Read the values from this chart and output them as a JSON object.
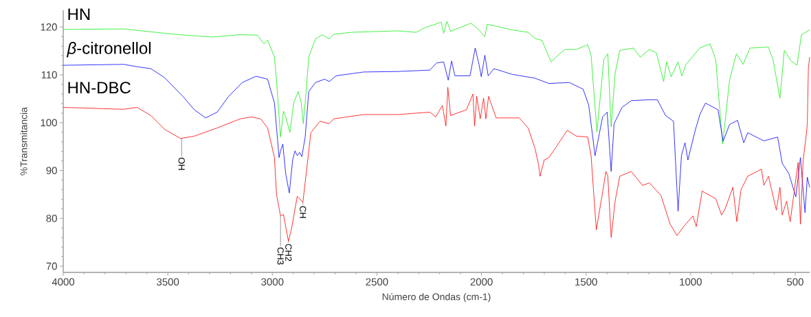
{
  "chart_data": {
    "type": "line",
    "xlabel": "Número de Ondas (cm-1)",
    "ylabel": "%Transmitancia",
    "xlim": [
      4000,
      431
    ],
    "ylim": [
      68.7,
      123.5
    ],
    "xticks": [
      4000,
      3500,
      3000,
      2500,
      2000,
      1500,
      1000,
      500
    ],
    "yticks": [
      70,
      80,
      90,
      100,
      110,
      120
    ],
    "marker": "none",
    "line_style": "solid",
    "series": [
      {
        "name": "HN",
        "color": "#11ee11",
        "x": [
          4000,
          3712,
          3450,
          3286,
          3154,
          3072,
          3040,
          3023,
          2990,
          2980,
          2961,
          2947,
          2936,
          2916,
          2898,
          2876,
          2862,
          2852,
          2837,
          2826,
          2794,
          2761,
          2728,
          2706,
          2619,
          2400,
          2312,
          2269,
          2192,
          2181,
          2165,
          2148,
          2050,
          2017,
          1984,
          1973,
          1853,
          1777,
          1744,
          1711,
          1667,
          1634,
          1602,
          1547,
          1492,
          1476,
          1448,
          1415,
          1396,
          1380,
          1361,
          1339,
          1274,
          1241,
          1197,
          1164,
          1129,
          1115,
          1093,
          1060,
          1042,
          1022,
          956,
          907,
          880,
          847,
          814,
          781,
          749,
          716,
          628,
          606,
          573,
          552,
          519,
          491,
          470,
          431
        ],
        "values": [
          119.5,
          119.6,
          118.4,
          117.9,
          118.4,
          118.3,
          116.5,
          117.3,
          113.7,
          108.8,
          97.0,
          102.4,
          101.2,
          98.0,
          104.1,
          106.5,
          104.1,
          99.8,
          107.4,
          113.7,
          117.5,
          118.4,
          117.5,
          118.5,
          118.9,
          119.2,
          118.9,
          119.9,
          121.0,
          118.7,
          121.2,
          119.1,
          120.8,
          119.6,
          118.0,
          120.6,
          119.4,
          118.9,
          117.6,
          117.2,
          112.7,
          114.1,
          115.3,
          115.3,
          116.3,
          114.1,
          98.1,
          113.2,
          114.4,
          99.1,
          110.3,
          115.1,
          115.6,
          113.7,
          115.3,
          114.6,
          108.6,
          112.7,
          109.6,
          112.7,
          109.8,
          112.2,
          115.6,
          116.5,
          113.2,
          95.5,
          108.9,
          114.4,
          112.2,
          115.6,
          115.8,
          113.2,
          105.1,
          115.1,
          112.9,
          112.0,
          118.4,
          119.4
        ]
      },
      {
        "name": "*β*-citronellol",
        "color": "#0000ff",
        "x": [
          4000,
          3712,
          3647,
          3581,
          3515,
          3428,
          3373,
          3319,
          3264,
          3209,
          3144,
          3078,
          3023,
          2990,
          2980,
          2968,
          2961,
          2950,
          2936,
          2919,
          2903,
          2892,
          2881,
          2870,
          2859,
          2843,
          2826,
          2794,
          2750,
          2728,
          2695,
          2564,
          2400,
          2247,
          2214,
          2181,
          2159,
          2143,
          2127,
          2055,
          2030,
          2012,
          2001,
          1984,
          1968,
          1941,
          1853,
          1744,
          1678,
          1580,
          1514,
          1487,
          1457,
          1421,
          1399,
          1380,
          1366,
          1328,
          1284,
          1197,
          1159,
          1120,
          1082,
          1060,
          1044,
          1027,
          1013,
          978,
          956,
          929,
          869,
          845,
          814,
          776,
          746,
          727,
          650,
          584,
          562,
          530,
          497,
          475,
          453,
          442,
          431
        ],
        "values": [
          112.0,
          112.2,
          111.7,
          111.3,
          109.4,
          105.5,
          102.7,
          101.0,
          102.2,
          105.5,
          108.4,
          109.7,
          109.1,
          104.1,
          98.9,
          92.7,
          94.1,
          95.5,
          89.3,
          85.3,
          92.2,
          94.1,
          93.1,
          93.8,
          92.9,
          97.0,
          106.5,
          108.4,
          109.1,
          108.6,
          109.8,
          110.6,
          110.7,
          111.0,
          112.5,
          112.7,
          108.9,
          112.9,
          109.8,
          109.8,
          115.6,
          112.2,
          109.6,
          114.1,
          109.8,
          111.3,
          110.1,
          109.3,
          108.2,
          108.4,
          107.0,
          103.6,
          93.1,
          101.2,
          102.2,
          89.8,
          99.8,
          103.2,
          104.6,
          104.8,
          104.8,
          101.5,
          100.3,
          81.5,
          93.1,
          95.8,
          92.2,
          98.4,
          101.7,
          104.1,
          102.7,
          96.1,
          99.6,
          100.5,
          95.8,
          97.9,
          96.2,
          97.0,
          91.5,
          89.3,
          84.5,
          92.7,
          81.2,
          88.6,
          86.5
        ]
      },
      {
        "name": "HN-DBC",
        "color": "#ff0000",
        "x": [
          4000,
          3712,
          3647,
          3581,
          3515,
          3439,
          3373,
          3264,
          3154,
          3100,
          3056,
          3023,
          2990,
          2980,
          2961,
          2947,
          2923,
          2908,
          2881,
          2854,
          2837,
          2816,
          2772,
          2728,
          2706,
          2564,
          2400,
          2247,
          2219,
          2187,
          2170,
          2161,
          2148,
          2072,
          2041,
          2033,
          2023,
          2006,
          1990,
          1979,
          1966,
          1930,
          1820,
          1777,
          1744,
          1727,
          1720,
          1700,
          1678,
          1645,
          1590,
          1547,
          1492,
          1476,
          1451,
          1426,
          1405,
          1396,
          1380,
          1361,
          1339,
          1284,
          1230,
          1197,
          1142,
          1098,
          1065,
          1033,
          989,
          973,
          945,
          880,
          852,
          836,
          798,
          779,
          759,
          727,
          661,
          650,
          628,
          590,
          573,
          562,
          541,
          524,
          486,
          475,
          462,
          448,
          442,
          437,
          431
        ],
        "values": [
          103.2,
          102.8,
          103.2,
          101.5,
          98.6,
          96.7,
          97.2,
          98.9,
          100.8,
          101.2,
          100.8,
          98.9,
          92.7,
          85.0,
          80.5,
          80.8,
          75.2,
          77.9,
          84.6,
          83.4,
          89.8,
          97.9,
          100.3,
          99.8,
          100.8,
          101.7,
          101.7,
          102.2,
          101.2,
          103.6,
          99.3,
          107.4,
          101.5,
          102.7,
          106.0,
          99.3,
          105.5,
          100.8,
          105.1,
          100.8,
          105.5,
          101.0,
          101.0,
          98.9,
          94.6,
          91.2,
          88.8,
          92.2,
          92.7,
          94.8,
          98.4,
          97.2,
          97.0,
          93.1,
          77.6,
          84.1,
          89.8,
          88.8,
          76.0,
          83.6,
          88.8,
          89.8,
          86.9,
          87.4,
          84.8,
          78.8,
          76.4,
          78.3,
          80.5,
          78.3,
          85.7,
          84.1,
          80.7,
          81.9,
          86.5,
          79.3,
          86.0,
          88.8,
          90.3,
          86.9,
          88.8,
          81.7,
          86.5,
          80.7,
          83.6,
          79.3,
          91.7,
          78.8,
          92.2,
          97.0,
          99.8,
          111.3,
          113.7
        ]
      }
    ],
    "annotations": [
      {
        "text": "OH",
        "x": 3434,
        "y": 96.7
      },
      {
        "text": "CH3",
        "x": 2961,
        "y": 80.5
      },
      {
        "text": "CH2",
        "x": 2923,
        "y": 75.2
      },
      {
        "text": "CH",
        "x": 2854,
        "y": 83.4
      }
    ]
  }
}
